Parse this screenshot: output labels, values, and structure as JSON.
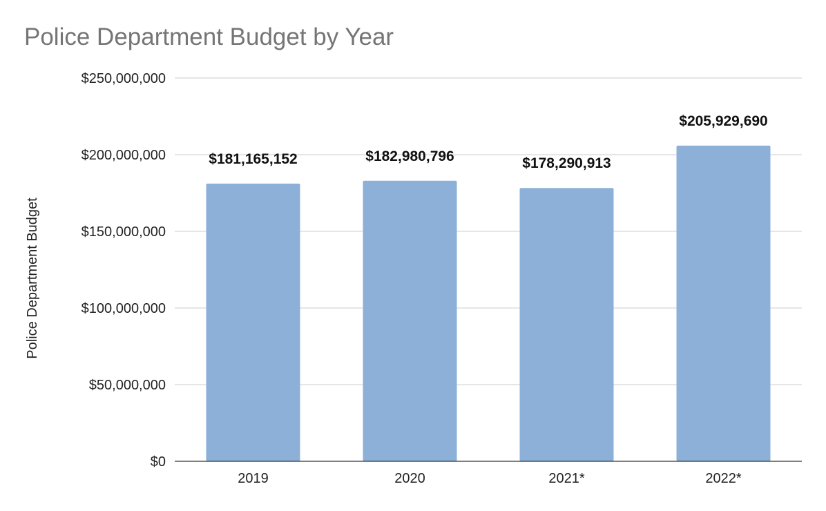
{
  "chart_data": {
    "type": "bar",
    "title": "Police Department Budget by Year",
    "xlabel": "",
    "ylabel": "Police Department Budget",
    "categories": [
      "2019",
      "2020",
      "2021*",
      "2022*"
    ],
    "values": [
      181165152,
      182980796,
      178290913,
      205929690
    ],
    "data_labels": [
      "$181,165,152",
      "$182,980,796",
      "$178,290,913",
      "$205,929,690"
    ],
    "ylim": [
      0,
      250000000
    ],
    "yticks": [
      0,
      50000000,
      100000000,
      150000000,
      200000000,
      250000000
    ],
    "ytick_labels": [
      "$0",
      "$50,000,000",
      "$100,000,000",
      "$150,000,000",
      "$200,000,000",
      "$250,000,000"
    ],
    "grid": true,
    "bar_color": "#8cb0d8",
    "legend": "none"
  }
}
